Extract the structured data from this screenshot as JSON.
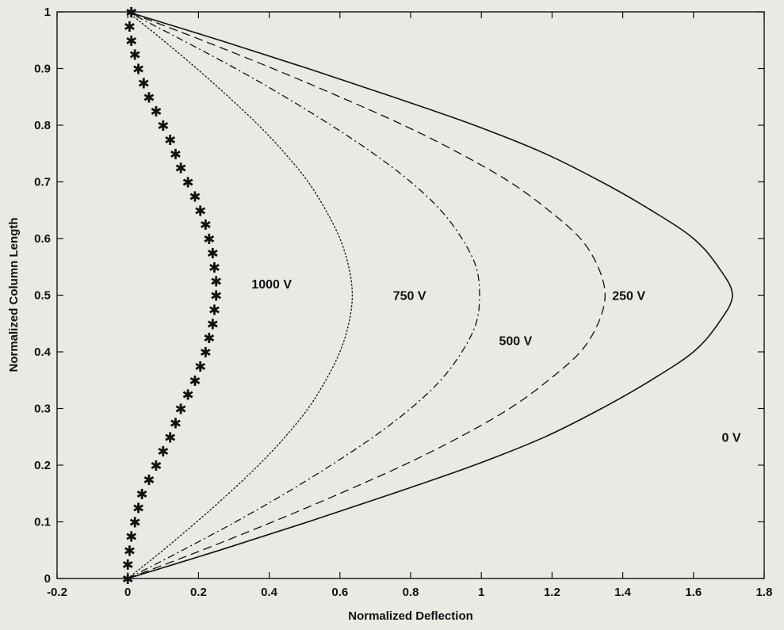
{
  "chart_data": {
    "type": "line",
    "xlabel": "Normalized Deflection",
    "ylabel": "Normalized Column Length",
    "xlim": [
      -0.2,
      1.8
    ],
    "ylim": [
      0,
      1
    ],
    "xticks": [
      -0.2,
      0,
      0.2,
      0.4,
      0.6,
      0.8,
      1,
      1.2,
      1.4,
      1.6,
      1.8
    ],
    "xtick_labels": [
      "-0.2",
      "0",
      "0.2",
      "0.4",
      "0.6",
      "0.8",
      "1",
      "1.2",
      "1.4",
      "1.6",
      "1.8"
    ],
    "yticks": [
      0,
      0.1,
      0.2,
      0.3,
      0.4,
      0.5,
      0.6,
      0.7,
      0.8,
      0.9,
      1
    ],
    "ytick_labels": [
      "0",
      "0.1",
      "0.2",
      "0.3",
      "0.4",
      "0.5",
      "0.6",
      "0.7",
      "0.8",
      "0.9",
      "1"
    ],
    "grid": false,
    "legend": "none",
    "series": [
      {
        "label": "0 V",
        "line_style": "solid",
        "label_x": 1.68,
        "label_y": 0.25,
        "points": [
          [
            0,
            0
          ],
          [
            0.26,
            0.05
          ],
          [
            0.51,
            0.1
          ],
          [
            0.75,
            0.15
          ],
          [
            0.98,
            0.2
          ],
          [
            1.18,
            0.25
          ],
          [
            1.34,
            0.3
          ],
          [
            1.48,
            0.35
          ],
          [
            1.6,
            0.4
          ],
          [
            1.67,
            0.45
          ],
          [
            1.71,
            0.5
          ],
          [
            1.67,
            0.55
          ],
          [
            1.6,
            0.6
          ],
          [
            1.48,
            0.65
          ],
          [
            1.34,
            0.7
          ],
          [
            1.18,
            0.75
          ],
          [
            0.98,
            0.8
          ],
          [
            0.75,
            0.85
          ],
          [
            0.51,
            0.9
          ],
          [
            0.26,
            0.95
          ],
          [
            0,
            1
          ]
        ]
      },
      {
        "label": "250 V",
        "line_style": "dashed",
        "label_x": 1.37,
        "label_y": 0.5,
        "points": [
          [
            0,
            0
          ],
          [
            0.21,
            0.05
          ],
          [
            0.41,
            0.1
          ],
          [
            0.6,
            0.15
          ],
          [
            0.78,
            0.2
          ],
          [
            0.94,
            0.25
          ],
          [
            1.08,
            0.3
          ],
          [
            1.19,
            0.35
          ],
          [
            1.28,
            0.4
          ],
          [
            1.33,
            0.45
          ],
          [
            1.35,
            0.5
          ],
          [
            1.33,
            0.55
          ],
          [
            1.28,
            0.6
          ],
          [
            1.19,
            0.65
          ],
          [
            1.08,
            0.7
          ],
          [
            0.94,
            0.75
          ],
          [
            0.78,
            0.8
          ],
          [
            0.6,
            0.85
          ],
          [
            0.41,
            0.9
          ],
          [
            0.21,
            0.95
          ],
          [
            0,
            1
          ]
        ]
      },
      {
        "label": "500 V",
        "line_style": "dashdot",
        "label_x": 1.05,
        "label_y": 0.42,
        "points": [
          [
            0,
            0
          ],
          [
            0.155,
            0.05
          ],
          [
            0.305,
            0.1
          ],
          [
            0.445,
            0.15
          ],
          [
            0.575,
            0.2
          ],
          [
            0.695,
            0.25
          ],
          [
            0.8,
            0.3
          ],
          [
            0.885,
            0.35
          ],
          [
            0.945,
            0.4
          ],
          [
            0.985,
            0.45
          ],
          [
            0.995,
            0.5
          ],
          [
            0.985,
            0.55
          ],
          [
            0.945,
            0.6
          ],
          [
            0.885,
            0.65
          ],
          [
            0.8,
            0.7
          ],
          [
            0.695,
            0.75
          ],
          [
            0.575,
            0.8
          ],
          [
            0.445,
            0.85
          ],
          [
            0.305,
            0.9
          ],
          [
            0.155,
            0.95
          ],
          [
            0,
            1
          ]
        ]
      },
      {
        "label": "750 V",
        "line_style": "dotted",
        "label_x": 0.75,
        "label_y": 0.5,
        "points": [
          [
            0,
            0
          ],
          [
            0.1,
            0.05
          ],
          [
            0.195,
            0.1
          ],
          [
            0.285,
            0.15
          ],
          [
            0.37,
            0.2
          ],
          [
            0.445,
            0.25
          ],
          [
            0.51,
            0.3
          ],
          [
            0.56,
            0.35
          ],
          [
            0.6,
            0.4
          ],
          [
            0.625,
            0.45
          ],
          [
            0.635,
            0.5
          ],
          [
            0.625,
            0.55
          ],
          [
            0.6,
            0.6
          ],
          [
            0.56,
            0.65
          ],
          [
            0.51,
            0.7
          ],
          [
            0.445,
            0.75
          ],
          [
            0.37,
            0.8
          ],
          [
            0.285,
            0.85
          ],
          [
            0.195,
            0.9
          ],
          [
            0.1,
            0.95
          ],
          [
            0,
            1
          ]
        ]
      },
      {
        "label": "1000 V",
        "line_style": "star-markers",
        "label_x": 0.35,
        "label_y": 0.52,
        "points": [
          [
            0,
            0
          ],
          [
            0.0,
            0.025
          ],
          [
            0.005,
            0.05
          ],
          [
            0.01,
            0.075
          ],
          [
            0.02,
            0.1
          ],
          [
            0.03,
            0.125
          ],
          [
            0.04,
            0.15
          ],
          [
            0.06,
            0.175
          ],
          [
            0.08,
            0.2
          ],
          [
            0.1,
            0.225
          ],
          [
            0.12,
            0.25
          ],
          [
            0.135,
            0.275
          ],
          [
            0.15,
            0.3
          ],
          [
            0.17,
            0.325
          ],
          [
            0.19,
            0.35
          ],
          [
            0.205,
            0.375
          ],
          [
            0.22,
            0.4
          ],
          [
            0.23,
            0.425
          ],
          [
            0.24,
            0.45
          ],
          [
            0.245,
            0.475
          ],
          [
            0.25,
            0.5
          ],
          [
            0.25,
            0.525
          ],
          [
            0.245,
            0.55
          ],
          [
            0.24,
            0.575
          ],
          [
            0.23,
            0.6
          ],
          [
            0.22,
            0.625
          ],
          [
            0.205,
            0.65
          ],
          [
            0.19,
            0.675
          ],
          [
            0.17,
            0.7
          ],
          [
            0.15,
            0.725
          ],
          [
            0.135,
            0.75
          ],
          [
            0.12,
            0.775
          ],
          [
            0.1,
            0.8
          ],
          [
            0.08,
            0.825
          ],
          [
            0.06,
            0.85
          ],
          [
            0.045,
            0.875
          ],
          [
            0.03,
            0.9
          ],
          [
            0.02,
            0.925
          ],
          [
            0.01,
            0.95
          ],
          [
            0.005,
            0.975
          ],
          [
            0.01,
            1
          ]
        ]
      }
    ]
  }
}
